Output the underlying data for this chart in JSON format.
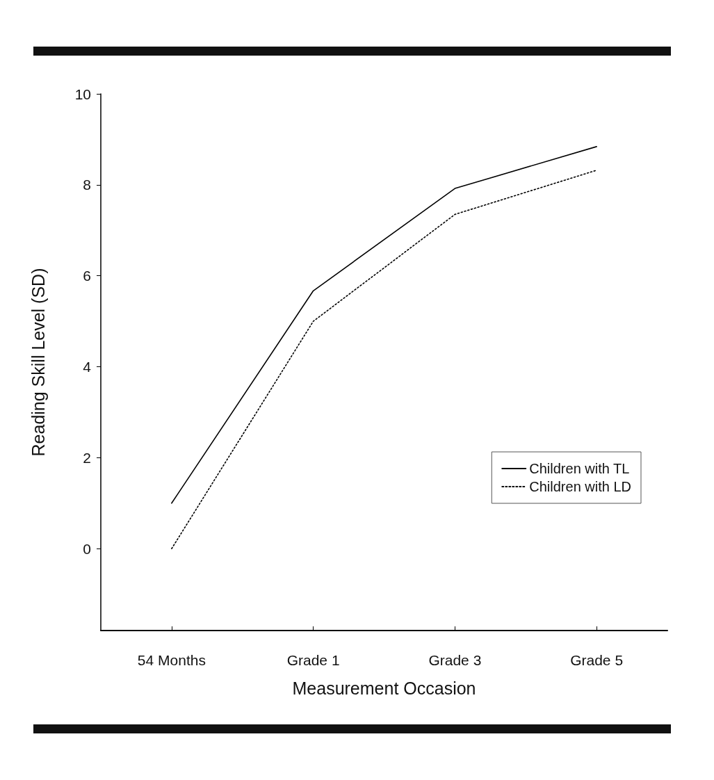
{
  "chart_data": {
    "type": "line",
    "xlabel": "Measurement Occasion",
    "ylabel": "Reading Skill Level (SD)",
    "categories": [
      "54 Months",
      "Grade 1",
      "Grade 3",
      "Grade 5"
    ],
    "series": [
      {
        "name": "Children with TL",
        "color": "#000000",
        "line_style": "solid",
        "values": [
          1.0,
          5.67,
          7.92,
          8.84
        ]
      },
      {
        "name": "Children with LD",
        "color": "#000000",
        "line_style": "dotted",
        "values": [
          0.0,
          5.0,
          7.35,
          8.32
        ]
      }
    ],
    "ylim": [
      -1.8,
      10
    ],
    "yticks": [
      0,
      2,
      4,
      6,
      8,
      10
    ],
    "grid": false,
    "legend": "bottom right",
    "marker": "none"
  }
}
